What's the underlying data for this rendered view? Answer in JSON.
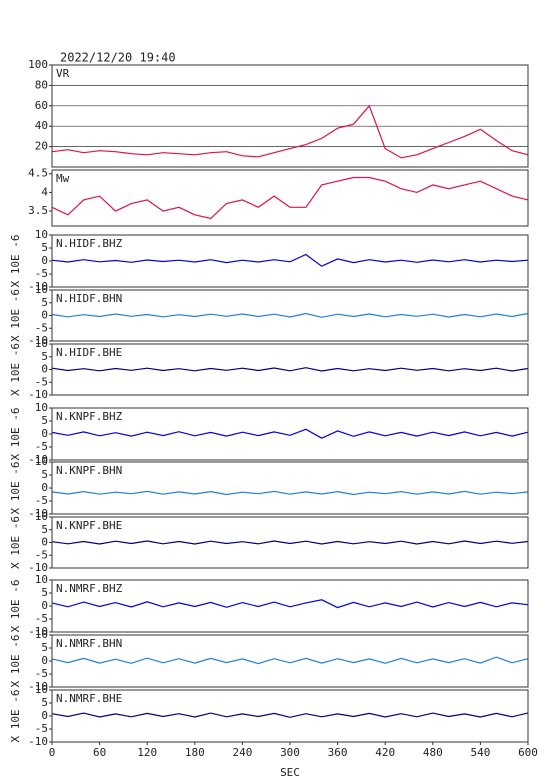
{
  "chart_data": [
    {
      "type": "line",
      "title": "2022/12/20 19:40",
      "label": "VR",
      "color": "#e0104a",
      "grid": true,
      "x": [
        0,
        20,
        40,
        60,
        80,
        100,
        120,
        140,
        160,
        180,
        200,
        220,
        240,
        260,
        280,
        300,
        320,
        340,
        360,
        380,
        400,
        420,
        440,
        460,
        480,
        500,
        520,
        540,
        560,
        580,
        600
      ],
      "values": [
        15,
        17,
        14,
        16,
        15,
        13,
        12,
        14,
        13,
        12,
        14,
        15,
        11,
        10,
        14,
        18,
        22,
        28,
        38,
        42,
        60,
        18,
        9,
        12,
        18,
        24,
        30,
        37,
        26,
        16,
        12
      ],
      "xlim": [
        0,
        600
      ],
      "ylim": [
        0,
        100
      ],
      "yticks": [
        20,
        40,
        60,
        80,
        100
      ]
    },
    {
      "type": "line",
      "label": "Mw",
      "color": "#e0104a",
      "grid": false,
      "x": [
        0,
        20,
        40,
        60,
        80,
        100,
        120,
        140,
        160,
        180,
        200,
        220,
        240,
        260,
        280,
        300,
        320,
        340,
        360,
        380,
        400,
        420,
        440,
        460,
        480,
        500,
        520,
        540,
        560,
        580,
        600
      ],
      "values": [
        3.6,
        3.4,
        3.8,
        3.9,
        3.5,
        3.7,
        3.8,
        3.5,
        3.6,
        3.4,
        3.3,
        3.7,
        3.8,
        3.6,
        3.9,
        3.6,
        3.6,
        4.2,
        4.3,
        4.4,
        4.4,
        4.3,
        4.1,
        4.0,
        4.2,
        4.1,
        4.2,
        4.3,
        4.1,
        3.9,
        3.8
      ],
      "xlim": [
        0,
        600
      ],
      "ylim": [
        3.1,
        4.6
      ],
      "yticks": [
        3.5,
        4.0,
        4.5
      ]
    },
    {
      "type": "line",
      "label": "N.HIDF.BHZ",
      "ylabel": "X 10E -6",
      "color": "#0000e0",
      "x": [
        0,
        20,
        40,
        60,
        80,
        100,
        120,
        140,
        160,
        180,
        200,
        220,
        240,
        260,
        280,
        300,
        320,
        340,
        360,
        380,
        400,
        420,
        440,
        460,
        480,
        500,
        520,
        540,
        560,
        580,
        600
      ],
      "values": [
        0.3,
        -0.4,
        0.5,
        -0.3,
        0.2,
        -0.5,
        0.4,
        -0.2,
        0.3,
        -0.4,
        0.5,
        -0.6,
        0.3,
        -0.4,
        0.5,
        -0.3,
        2.5,
        -2,
        0.8,
        -0.6,
        0.5,
        -0.4,
        0.3,
        -0.5,
        0.4,
        -0.3,
        0.5,
        -0.4,
        0.3,
        -0.2,
        0.3
      ],
      "xlim": [
        0,
        600
      ],
      "ylim": [
        -10,
        10
      ],
      "yticks": [
        -10,
        -5,
        0,
        5,
        10
      ]
    },
    {
      "type": "line",
      "label": "N.HIDF.BHN",
      "ylabel": "X 10E -6",
      "color": "#2080e0",
      "x": [
        0,
        20,
        40,
        60,
        80,
        100,
        120,
        140,
        160,
        180,
        200,
        220,
        240,
        260,
        280,
        300,
        320,
        340,
        360,
        380,
        400,
        420,
        440,
        460,
        480,
        500,
        520,
        540,
        560,
        580,
        600
      ],
      "values": [
        0.4,
        -0.5,
        0.3,
        -0.4,
        0.6,
        -0.3,
        0.4,
        -0.5,
        0.3,
        -0.4,
        0.5,
        -0.3,
        0.6,
        -0.4,
        0.5,
        -0.6,
        0.8,
        -0.7,
        0.5,
        -0.4,
        0.6,
        -0.5,
        0.4,
        -0.3,
        0.5,
        -0.6,
        0.4,
        -0.5,
        0.6,
        -0.4,
        0.8
      ],
      "xlim": [
        0,
        600
      ],
      "ylim": [
        -10,
        10
      ],
      "yticks": [
        -10,
        -5,
        0,
        5,
        10
      ]
    },
    {
      "type": "line",
      "label": "N.HIDF.BHE",
      "ylabel": "X 10E -6",
      "color": "#000080",
      "x": [
        0,
        20,
        40,
        60,
        80,
        100,
        120,
        140,
        160,
        180,
        200,
        220,
        240,
        260,
        280,
        300,
        320,
        340,
        360,
        380,
        400,
        420,
        440,
        460,
        480,
        500,
        520,
        540,
        560,
        580,
        600
      ],
      "values": [
        0.5,
        -0.4,
        0.3,
        -0.5,
        0.4,
        -0.3,
        0.5,
        -0.4,
        0.3,
        -0.5,
        0.4,
        -0.3,
        0.5,
        -0.4,
        0.6,
        -0.5,
        0.7,
        -0.6,
        0.4,
        -0.5,
        0.3,
        -0.4,
        0.5,
        -0.3,
        0.4,
        -0.5,
        0.3,
        -0.4,
        0.5,
        -0.6,
        0.4
      ],
      "xlim": [
        0,
        600
      ],
      "ylim": [
        -10,
        10
      ],
      "yticks": [
        -10,
        -5,
        0,
        5,
        10
      ]
    },
    {
      "type": "line",
      "label": "N.KNPF.BHZ",
      "ylabel": "X 10E -6",
      "color": "#0000e0",
      "x": [
        0,
        20,
        40,
        60,
        80,
        100,
        120,
        140,
        160,
        180,
        200,
        220,
        240,
        260,
        280,
        300,
        320,
        340,
        360,
        380,
        400,
        420,
        440,
        460,
        480,
        500,
        520,
        540,
        560,
        580,
        600
      ],
      "values": [
        0.6,
        -0.5,
        0.8,
        -0.7,
        0.5,
        -0.8,
        0.7,
        -0.6,
        0.9,
        -0.7,
        0.6,
        -0.8,
        0.7,
        -0.6,
        0.8,
        -0.5,
        1.8,
        -1.6,
        1.2,
        -0.9,
        0.8,
        -0.7,
        0.6,
        -0.8,
        0.7,
        -0.6,
        0.8,
        -0.7,
        0.6,
        -0.8,
        0.7
      ],
      "xlim": [
        0,
        600
      ],
      "ylim": [
        -10,
        10
      ],
      "yticks": [
        -10,
        -5,
        0,
        5,
        10
      ]
    },
    {
      "type": "line",
      "label": "N.KNPF.BHN",
      "ylabel": "X 10E -6",
      "color": "#2080e0",
      "x": [
        0,
        20,
        40,
        60,
        80,
        100,
        120,
        140,
        160,
        180,
        200,
        220,
        240,
        260,
        280,
        300,
        320,
        340,
        360,
        380,
        400,
        420,
        440,
        460,
        480,
        500,
        520,
        540,
        560,
        580,
        600
      ],
      "values": [
        -1.5,
        -2.3,
        -1.4,
        -2.4,
        -1.6,
        -2.2,
        -1.3,
        -2.4,
        -1.5,
        -2.3,
        -1.4,
        -2.5,
        -1.6,
        -2.2,
        -1.3,
        -2.4,
        -1.5,
        -2.3,
        -1.4,
        -2.5,
        -1.6,
        -2.2,
        -1.4,
        -2.4,
        -1.5,
        -2.3,
        -1.3,
        -2.4,
        -1.6,
        -2.2,
        -1.5
      ],
      "xlim": [
        0,
        600
      ],
      "ylim": [
        -10,
        10
      ],
      "yticks": [
        -10,
        -5,
        0,
        5,
        10
      ]
    },
    {
      "type": "line",
      "label": "N.KNPF.BHE",
      "ylabel": "X 10E -6",
      "color": "#000080",
      "x": [
        0,
        20,
        40,
        60,
        80,
        100,
        120,
        140,
        160,
        180,
        200,
        220,
        240,
        260,
        280,
        300,
        320,
        340,
        360,
        380,
        400,
        420,
        440,
        460,
        480,
        500,
        520,
        540,
        560,
        580,
        600
      ],
      "values": [
        0.3,
        -0.5,
        0.4,
        -0.6,
        0.5,
        -0.4,
        0.6,
        -0.5,
        0.4,
        -0.6,
        0.5,
        -0.4,
        0.3,
        -0.5,
        0.6,
        -0.4,
        0.5,
        -0.6,
        0.4,
        -0.5,
        0.3,
        -0.4,
        0.5,
        -0.6,
        0.4,
        -0.5,
        0.6,
        -0.4,
        0.5,
        -0.3,
        0.4
      ],
      "xlim": [
        0,
        600
      ],
      "ylim": [
        -10,
        10
      ],
      "yticks": [
        -10,
        -5,
        0,
        5,
        10
      ]
    },
    {
      "type": "line",
      "label": "N.NMRF.BHZ",
      "ylabel": "X 10E -6",
      "color": "#0000e0",
      "x": [
        0,
        20,
        40,
        60,
        80,
        100,
        120,
        140,
        160,
        180,
        200,
        220,
        240,
        260,
        280,
        300,
        320,
        340,
        360,
        380,
        400,
        420,
        440,
        460,
        480,
        500,
        520,
        540,
        560,
        580,
        600
      ],
      "values": [
        1.2,
        -0.3,
        1.5,
        -0.2,
        1.3,
        -0.4,
        1.6,
        -0.3,
        1.2,
        -0.2,
        1.4,
        -0.5,
        1.3,
        -0.2,
        1.5,
        -0.3,
        1.2,
        2.4,
        -0.6,
        1.4,
        -0.3,
        1.2,
        -0.2,
        1.5,
        -0.4,
        1.3,
        -0.2,
        1.4,
        -0.3,
        1.2,
        0.5
      ],
      "xlim": [
        0,
        600
      ],
      "ylim": [
        -10,
        10
      ],
      "yticks": [
        -10,
        -5,
        0,
        5,
        10
      ]
    },
    {
      "type": "line",
      "label": "N.NMRF.BHN",
      "ylabel": "X 10E -6",
      "color": "#2080e0",
      "x": [
        0,
        20,
        40,
        60,
        80,
        100,
        120,
        140,
        160,
        180,
        200,
        220,
        240,
        260,
        280,
        300,
        320,
        340,
        360,
        380,
        400,
        420,
        440,
        460,
        480,
        500,
        520,
        540,
        560,
        580,
        600
      ],
      "values": [
        0.8,
        -0.6,
        1.0,
        -0.8,
        0.7,
        -0.9,
        1.1,
        -0.7,
        0.9,
        -0.8,
        1.0,
        -0.6,
        0.8,
        -1.0,
        0.9,
        -0.7,
        1.0,
        -0.8,
        0.9,
        -0.6,
        0.8,
        -0.9,
        1.0,
        -0.7,
        0.8,
        -0.6,
        0.9,
        -0.8,
        1.5,
        -0.7,
        0.9
      ],
      "xlim": [
        0,
        600
      ],
      "ylim": [
        -10,
        10
      ],
      "yticks": [
        -10,
        -5,
        0,
        5,
        10
      ]
    },
    {
      "type": "line",
      "label": "N.NMRF.BHE",
      "ylabel": "X 10E -6",
      "color": "#000080",
      "xlabel": "SEC",
      "x": [
        0,
        20,
        40,
        60,
        80,
        100,
        120,
        140,
        160,
        180,
        200,
        220,
        240,
        260,
        280,
        300,
        320,
        340,
        360,
        380,
        400,
        420,
        440,
        460,
        480,
        500,
        520,
        540,
        560,
        580,
        600
      ],
      "values": [
        0.9,
        -0.2,
        1.1,
        -0.4,
        0.8,
        -0.3,
        1.0,
        -0.2,
        0.9,
        -0.4,
        1.1,
        -0.3,
        0.8,
        -0.2,
        1.0,
        -0.5,
        0.9,
        -0.3,
        0.8,
        -0.2,
        1.0,
        -0.4,
        0.9,
        -0.3,
        1.1,
        -0.2,
        0.8,
        -0.4,
        1.0,
        -0.3,
        1.2
      ],
      "xlim": [
        0,
        600
      ],
      "ylim": [
        -10,
        10
      ],
      "yticks": [
        -10,
        -5,
        0,
        5,
        10
      ],
      "xticks": [
        0,
        60,
        120,
        180,
        240,
        300,
        360,
        420,
        480,
        540,
        600
      ]
    }
  ]
}
